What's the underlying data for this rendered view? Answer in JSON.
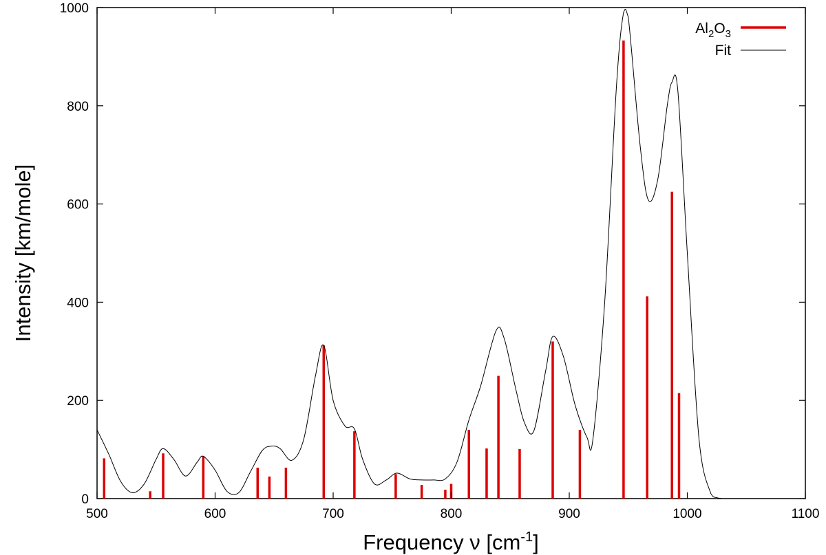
{
  "chart_data": {
    "type": "bar",
    "title": "",
    "xlabel": {
      "main": "Frequency ν [cm",
      "sup": "-1",
      "tail": "]"
    },
    "ylabel": "Intensity [km/mole]",
    "xlim": [
      500,
      1100
    ],
    "ylim": [
      0,
      1000
    ],
    "xticks": [
      500,
      600,
      700,
      800,
      900,
      1000,
      1100
    ],
    "yticks": [
      0,
      200,
      400,
      600,
      800,
      1000
    ],
    "grid": false,
    "legend_position": "top-right",
    "series": [
      {
        "name_parts": {
          "a": "Al",
          "b": "2",
          "c": "O",
          "d": "3"
        },
        "kind": "sticks",
        "color": "#dd0000",
        "x": [
          506,
          545,
          556,
          590,
          636,
          646,
          660,
          692,
          718,
          753,
          775,
          795,
          800,
          815,
          830,
          840,
          858,
          886,
          909,
          946,
          966,
          987,
          993
        ],
        "y": [
          82,
          15,
          92,
          87,
          63,
          45,
          63,
          312,
          137,
          50,
          28,
          18,
          30,
          140,
          102,
          250,
          101,
          320,
          140,
          933,
          412,
          625,
          215
        ]
      },
      {
        "name": "Fit",
        "kind": "curve",
        "color": "#000000",
        "x": [
          500,
          510,
          520,
          530,
          540,
          550,
          556,
          565,
          575,
          585,
          590,
          600,
          610,
          620,
          630,
          640,
          648,
          655,
          665,
          675,
          685,
          692,
          700,
          710,
          718,
          725,
          735,
          745,
          754,
          765,
          775,
          785,
          795,
          805,
          815,
          825,
          838,
          845,
          855,
          862,
          870,
          880,
          886,
          895,
          905,
          915,
          920,
          930,
          940,
          946,
          950,
          960,
          967,
          975,
          983,
          987,
          992,
          1000,
          1010,
          1020,
          1025,
          1030
        ],
        "y": [
          140,
          90,
          35,
          12,
          30,
          80,
          102,
          80,
          46,
          75,
          86,
          58,
          15,
          12,
          55,
          98,
          107,
          102,
          78,
          120,
          250,
          312,
          200,
          148,
          142,
          80,
          30,
          38,
          52,
          40,
          38,
          38,
          40,
          75,
          160,
          230,
          342,
          325,
          220,
          155,
          138,
          260,
          330,
          290,
          190,
          125,
          120,
          400,
          840,
          990,
          980,
          720,
          608,
          650,
          800,
          848,
          830,
          500,
          120,
          10,
          2,
          0
        ]
      }
    ]
  }
}
